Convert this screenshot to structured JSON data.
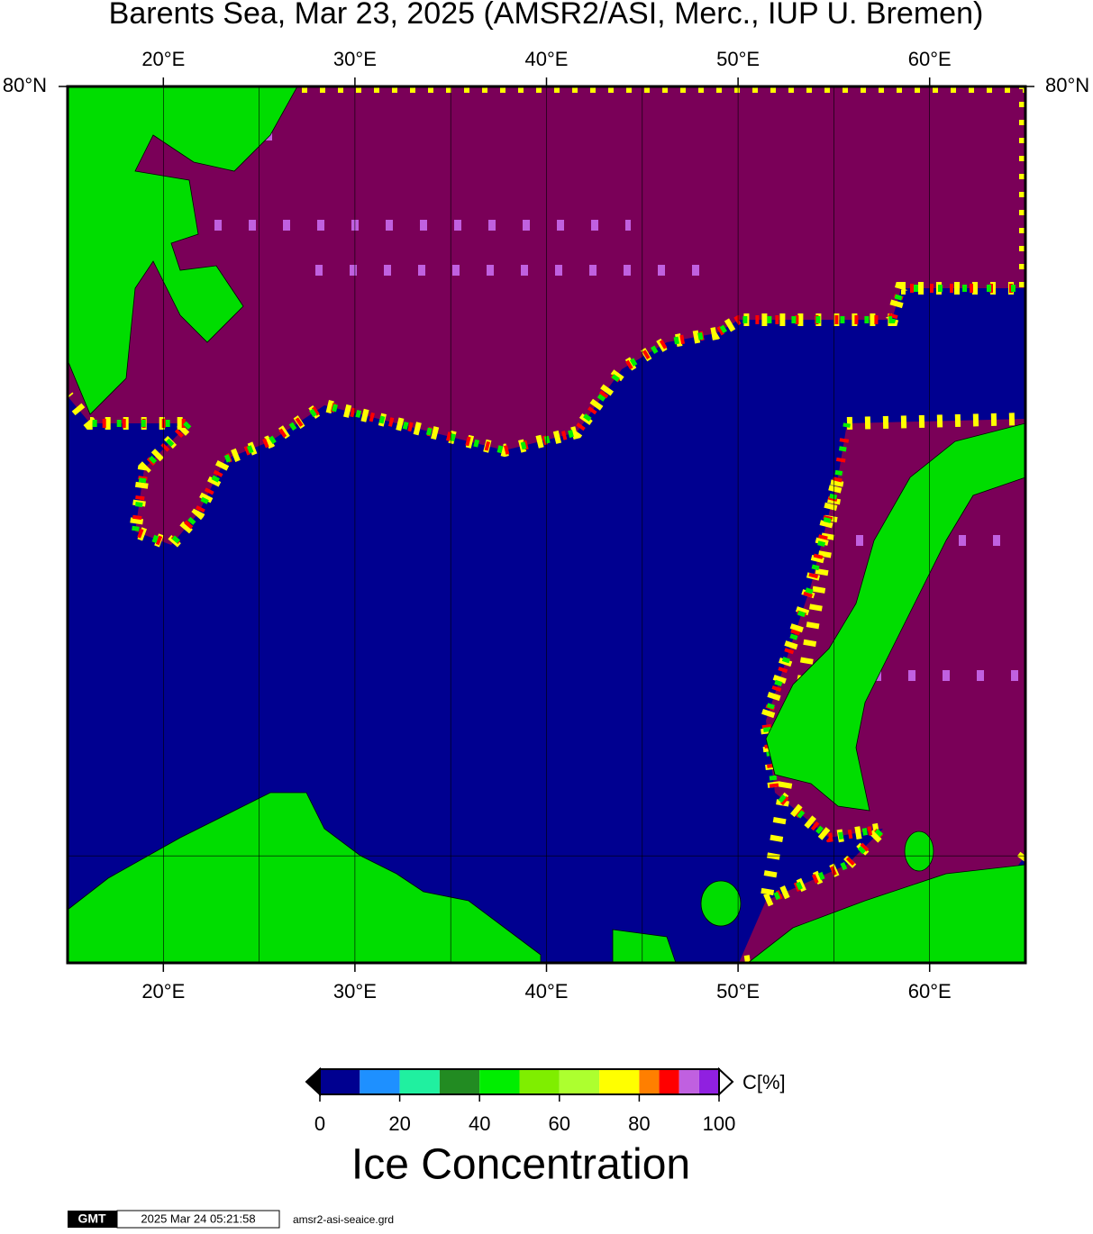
{
  "chart_data": {
    "type": "map",
    "projection": "mercator",
    "title": "Barents Sea, Mar 23, 2025 (AMSR2/ASI, Merc., IUP U. Bremen)",
    "xlim": [
      15,
      65
    ],
    "ylim": [
      68,
      80
    ],
    "xticks": [
      {
        "value": 20,
        "label": "20°E"
      },
      {
        "value": 30,
        "label": "30°E"
      },
      {
        "value": 40,
        "label": "40°E"
      },
      {
        "value": 50,
        "label": "50°E"
      },
      {
        "value": 60,
        "label": "60°E"
      }
    ],
    "yticks": [
      {
        "value": 80,
        "label": "80°N"
      }
    ],
    "grid_x": [
      20,
      25,
      30,
      35,
      40,
      45,
      50,
      55,
      60
    ],
    "grid_y": [
      70
    ],
    "colorbar": {
      "bins": [
        0,
        10,
        20,
        30,
        40,
        50,
        60,
        70,
        80,
        85,
        90,
        95,
        100
      ],
      "colors": [
        "#000090",
        "#1e90ff",
        "#20f0a0",
        "#228b22",
        "#00ee00",
        "#7fee00",
        "#adff2f",
        "#ffff00",
        "#ff7f00",
        "#ff0000",
        "#c060e0",
        "#9020e0"
      ],
      "ticks": [
        0,
        20,
        40,
        60,
        80,
        100
      ],
      "unit": "C[%]",
      "label": "Ice Concentration",
      "under_color": "#000000",
      "over_color": "#ffffff"
    }
  },
  "footer": {
    "logo": "GMT",
    "timestamp": "2025 Mar 24 05:21:58",
    "file": "amsr2-asi-seaice.grd"
  }
}
